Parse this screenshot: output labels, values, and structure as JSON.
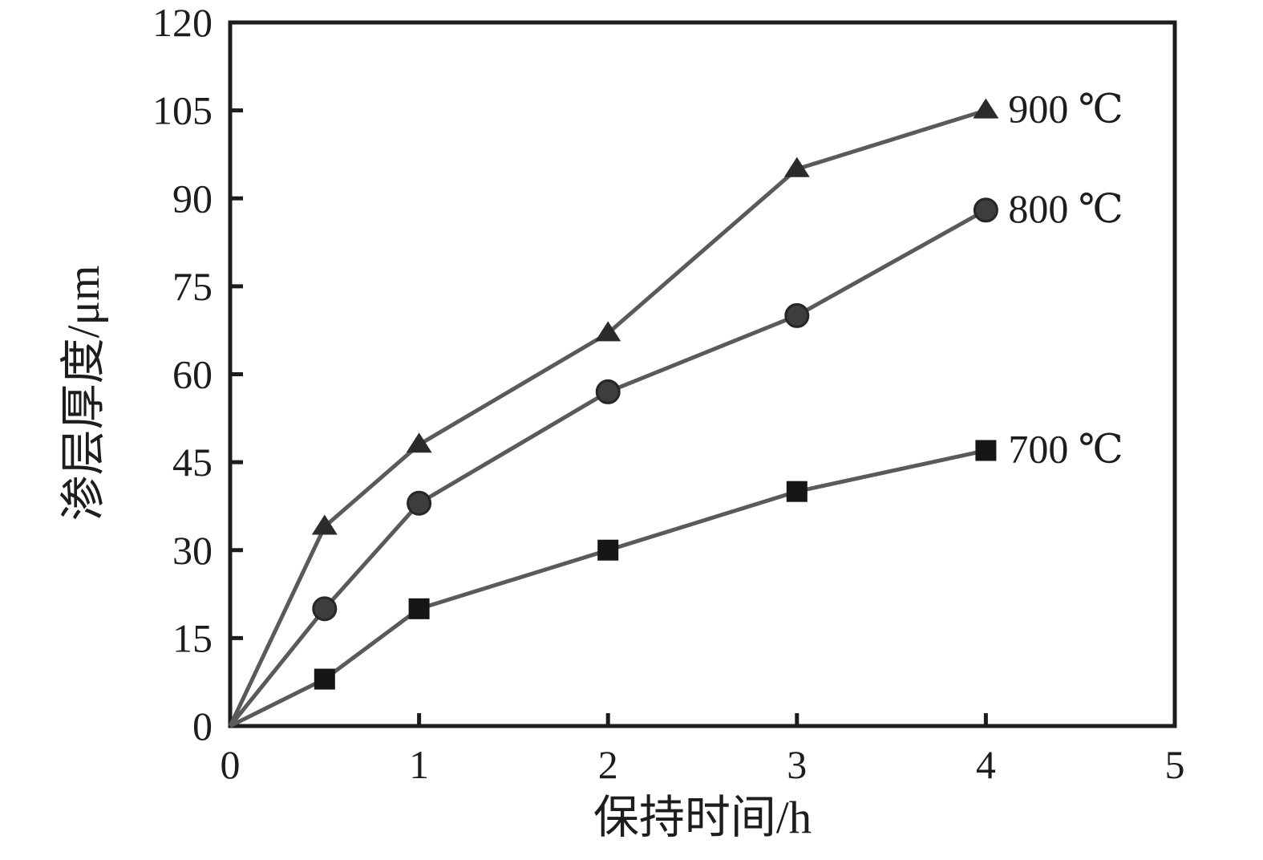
{
  "chart_data": {
    "type": "line",
    "title": "",
    "xlabel": "保持时间/h",
    "ylabel": "渗层厚度/μm",
    "xlim": [
      0,
      5
    ],
    "ylim": [
      0,
      120
    ],
    "xticks": [
      0,
      1,
      2,
      3,
      4,
      5
    ],
    "yticks": [
      0,
      15,
      30,
      45,
      60,
      75,
      90,
      105,
      120
    ],
    "grid": false,
    "legend_position": "labels-at-line-ends",
    "series": [
      {
        "name": "900 ℃",
        "marker": "triangle",
        "marker_color": "#2b2b2b",
        "x": [
          0,
          0.5,
          1,
          2,
          3,
          4
        ],
        "y": [
          0,
          34,
          48,
          67,
          95,
          105
        ]
      },
      {
        "name": "800 ℃",
        "marker": "circle",
        "marker_color": "#3d3d3d",
        "x": [
          0,
          0.5,
          1,
          2,
          3,
          4
        ],
        "y": [
          0,
          20,
          38,
          57,
          70,
          88
        ]
      },
      {
        "name": "700 ℃",
        "marker": "square",
        "marker_color": "#161616",
        "x": [
          0,
          0.5,
          1,
          2,
          3,
          4
        ],
        "y": [
          0,
          8,
          20,
          30,
          40,
          47
        ]
      }
    ],
    "colors": {
      "line": "#5a5a5a",
      "axis": "#1d1d1d",
      "text": "#1d1d1d",
      "background": "#ffffff"
    }
  }
}
